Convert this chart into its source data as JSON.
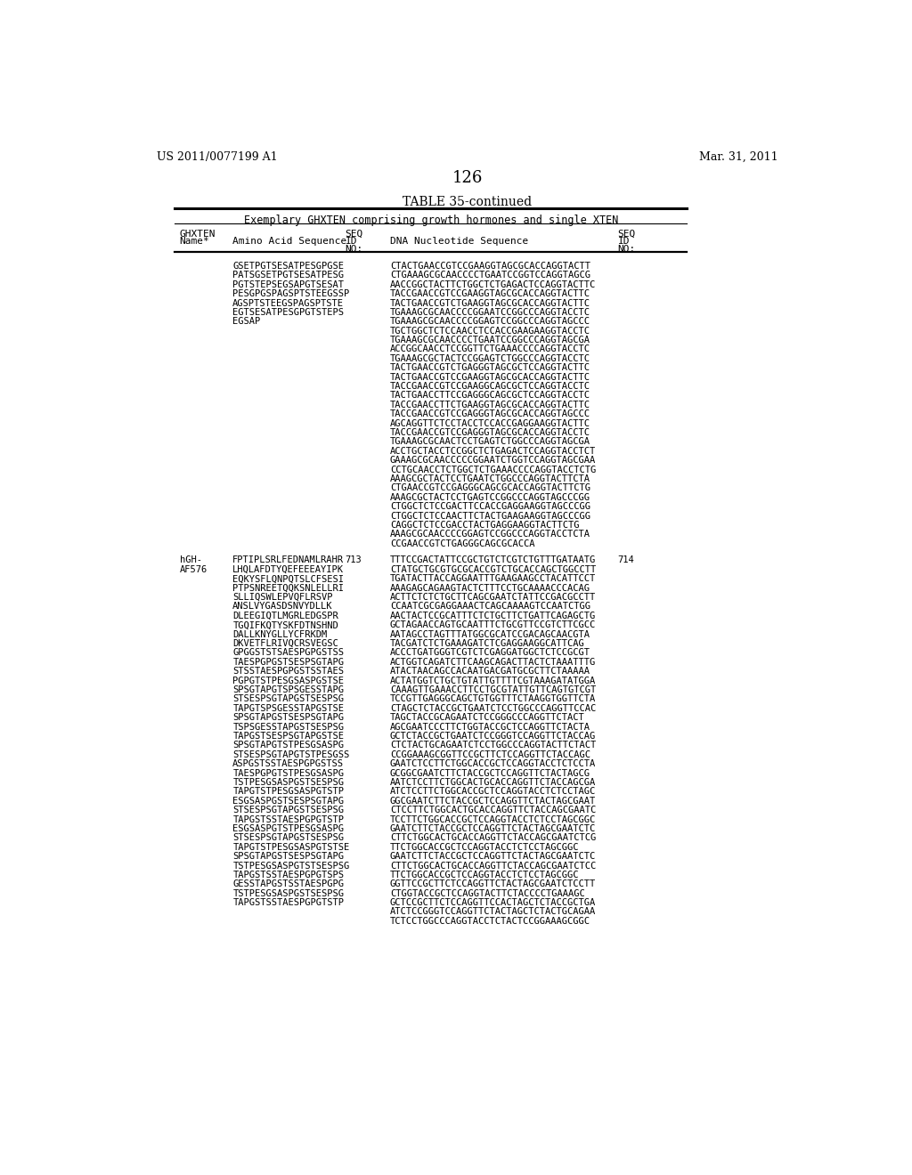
{
  "header_left": "US 2011/0077199 A1",
  "header_right": "Mar. 31, 2011",
  "page_number": "126",
  "table_title": "TABLE 35-continued",
  "table_subtitle": "Exemplary GHXTEN comprising growth hormones and single XTEN",
  "bg_color": "#ffffff",
  "col_headers": [
    "GHXTEN\nName*",
    "Amino Acid Sequence",
    "SEQ\nID\nNO:",
    "DNA Nucleotide Sequence",
    "SEQ\nID\nNO:"
  ],
  "block1_aa": [
    "GSETPGTSESATPESGPGSE",
    "PATSGSETPGTSESATPESG",
    "PGTSTEPSEGSAPGTSESAT",
    "PESGPGSPAGSPTSTEEGSSP",
    "AGSPTSTEEGSPAGSPTSTE",
    "EGTSESATPESGPGTSTEPS",
    "EGSAP"
  ],
  "block1_dna": [
    "CTACTGAACCGTCCGAAGGTAGCGCACCAGGTACTT",
    "CTGAAAGCGCAACCCCTGAATCCGGTCCAGGTAGCG",
    "AACCGGCTACTTCTGGCTCTGAGACTCCAGGTACTTC",
    "TACCGAACCGTCCGAAGGTAGCGCACCAGGTACTTC",
    "TACTGAACCGTCTGAAGGTAGCGCACCAGGTACTTC",
    "TGAAAGCGCAACCCCGGAATCCGGCCCAGGTACCTC",
    "TGAAAGCGCAACCCCGGAGTCCGGCCCAGGTAGCCC",
    "TGCTGGCTCTCCAACCTCCACCGAAGAAGGTACCTC",
    "TGAAAGCGCAACCCCTGAATCCGGCCCAGGTAGCGA",
    "ACCGGCAACCTCCGGTTCTGAAACCCCAGGTACCTC",
    "TGAAAGCGCTACTCCGGAGTCTGGCCCAGGTACCTC",
    "TACTGAACCGTCTGAGGGTAGCGCTCCAGGTACTTC",
    "TACTGAACCGTCCGAAGGTAGCGCACCAGGTACTTC",
    "TACCGAACCGTCCGAAGGCAGCGCTCCAGGTACCTC",
    "TACTGAACCTTCCGAGGGCAGCGCTCCAGGTACCTC",
    "TACCGAACCTTCTGAAGGTAGCGCACCAGGTACTTC",
    "TACCGAACCGTCCGAGGGTAGCGCACCAGGTAGCCC",
    "AGCAGGTTCTCCTACCTCCACCGAGGAAGGTACTTC",
    "TACCGAACCGTCCGAGGGTAGCGCACCAGGTACCTC",
    "TGAAAGCGCAACTCCTGAGTCTGGCCCAGGTAGCGA",
    "ACCTGCTACCTCCGGCTCTGAGACTCCAGGTACCTCT",
    "GAAAGCGCAACCCCCGGAATCTGGTCCAGGTAGCGAA",
    "CCTGCAACCTCTGGCTCTGAAACCCCAGGTACCTCTG",
    "AAAGCGCTACTCCTGAATCTGGCCCAGGTACTTCTA",
    "CTGAACCGTCCGAGGGCAGCGCACCAGGTACTTCTG",
    "AAAGCGCTACTCCTGAGTCCGGCCCAGGTAGCCCGG",
    "CTGGCTCTCCGACTTCCACCGAGGAAGGTAGCCCGG",
    "CTGGCTCTCCAACTTCTACTGAAGAAGGTAGCCCGG",
    "CAGGCTCTCCGACCTACTGAGGAAGGTACTTCTG",
    "AAAGCGCAACCCCGGAGTCCGGCCCAGGTACCTCTA",
    "CCGAACCGTCTGAGGGCAGCGCACCA"
  ],
  "block2_name1": "hGH-",
  "block2_name2": "AF576",
  "block2_seqid1": "713",
  "block2_seqid2": "714",
  "block2_aa": [
    "FPTIPLSRLFEDNAMLRAHR",
    "LHQLAFDTYQEFEEEAYIPK",
    "EQKYSFLQNPQTSLCFSESI",
    "PTPSNREETQQKSNLELLRI",
    "SLLIQSWLEPVQFLRSVP",
    "ANSLVYGASDSNVYDLLK",
    "DLEEGIQTLMGRLEDGSPR",
    "TGQIFKQTYSKFDTNSHND",
    "DALLKNYGLLYCFRKDM",
    "DKVETFLRIVQCRSVEGSC",
    "GPGGSTSTSAESPGPGSTSS",
    "TAESPGPGSTSESPSGTAPG",
    "STSSTAESPGPGSTSSTAES",
    "PGPGTSTPESGSASPGSTSE",
    "SPSGTAPGTSPSGESSTAPG",
    "STSESPSGTAPGSTSESPSG",
    "TAPGTSPSGESSTAPGSTSE",
    "SPSGTAPGSTSESPSGTAPG",
    "TSPSGESSTAPGSTSESPSG",
    "TAPGSTSESPSGTAPGSTSE",
    "SPSGTAPGTSTPESGSASPG",
    "STSESPSGTAPGTSTPESGSS",
    "ASPGSTSSTAESPGPGSTSS",
    "TAESPGPGTSTPESGSASPG",
    "TSTPESGSASPGSTSESPSG",
    "TAPGTSTPESGSASPGTSTP",
    "ESGSASPGSTSESPSGTAPG",
    "STSESPSGTAPGSTSESPSG",
    "TAPGSTSSTAESPGPGTSTP",
    "ESGSASPGTSTPESGSASPG",
    "STSESPSGTAPGSTSESPSG",
    "TAPGTSTPESGSASPGTSTSE",
    "SPSGTAPGSTSESPSGTAPG",
    "TSTPESGSASPGTSTSESPSG",
    "TAPGSTSSTAESPGPGTSPS",
    "GESSTAPGSTSSTAESPGPG",
    "TSTPESGSASPGSTSESPSG",
    "TAPGSTSSTAESPGPGTSTP"
  ],
  "block2_dna": [
    "TTTCCGACTATTCCGCTGTCTCGTCTGTTTGATAATG",
    "CTATGCTGCGTGCGCACCGTCTGCACCAGCTGGCCTT",
    "TGATACTTACCAGGAATTTGAAGAAGCCTACATTCCT",
    "AAAGAGCAGAAGTACTCTTTCCTGCAAAACCCACAG",
    "ACTTCTCTCTGCTTCAGCGAATCTATTCCGACGCCTT",
    "CCAATCGCGAGGAAACTCAGCAAAAGTCCAATCTGG",
    "AACTACTCCGCATTTCTCTGCTTCTGATTCAGAGCTG",
    "GCTAGAACCAGTGCAATTTCTGCGTTCCGTCTTCGCC",
    "AATAGCCTAGTTTATGGCGCATCCGACAGCAACGTA",
    "TACGATCTCTGAAAGATCTCGAGGAAGGCATTCAG",
    "ACCCTGATGGGTCGTCTCGAGGATGGCTCTCCGCGT",
    "ACTGGTCAGATCTTCAAGCAGACTTACTCTAAATTTG",
    "ATACTAACAGCCACAATGACGATGCGCTTCTAAAAA",
    "ACTATGGTCTGCTGTATTGTTTTCGTAAAGATATGGA",
    "CAAAGTTGAAACCTTCCTGCGTATTGTTCAGTGTCGT",
    "TCCGTTGAGGGCAGCTGTGGTTTCTAAGGTGGTTCTA",
    "CTAGCTCTACCGCTGAATCTCCTGGCCCAGGTTCCAC",
    "TAGCTACCGCAGAATCTCCGGGCCCAGGTTCTACT",
    "AGCGAATCCCTTCTGGTACCGCTCCAGGTTCTACTA",
    "GCTCTACCGCTGAATCTCCGGGTCCAGGTTCTACCAG",
    "CTCTACTGCAGAATCTCCTGGCCCAGGTACTTCTACT",
    "CCGGAAAGCGGTTCCGCTTCTCCAGGTTCTACCAGC",
    "GAATCTCCTTCTGGCACCGCTCCAGGTACCTCTCCTA",
    "GCGGCGAATCTTCTACCGCTCCAGGTTCTACTAGCG",
    "AATCTCCTTCTGGCACTGCACCAGGTTCTACCAGCGA",
    "ATCTCCTTCTGGCACCGCTCCAGGTACCTCTCCTAGC",
    "GGCGAATCTTCTACCGCTCCAGGTTCTACTAGCGAAT",
    "CTCCTTCTGGCACTGCACCAGGTTCTACCAGCGAATC",
    "TCCTTCTGGCACCGCTCCAGGTACCTCTCCTAGCGGC",
    "GAATCTTCTACCGCTCCAGGTTCTACTAGCGAATCTC",
    "CTTCTGGCACTGCACCAGGTTCTACCAGCGAATCTCG",
    "TTCTGGCACCGCTCCAGGTACCTCTCCTAGCGGC",
    "GAATCTTCTACCGCTCCAGGTTCTACTAGCGAATCTC",
    "CTTCTGGCACTGCACCAGGTTCTACCAGCGAATCTCC",
    "TTCTGGCACCGCTCCAGGTACCTCTCCTAGCGGC",
    "GGTTCCGCTTCTCCAGGTTCTACTAGCGAATCTCCTT",
    "CTGGTACCGCTCCAGGTACTTCTACCCCTGAAAGC",
    "GCTCCGCTTCTCCAGGTTCCACTAGCTCTACCGCTGA",
    "ATCTCCGGGTCCAGGTTCTACTAGCTCTACTGCAGAA",
    "TCTCCTGGCCCAGGTACCTCTACTCCGGAAAGCGGC"
  ]
}
